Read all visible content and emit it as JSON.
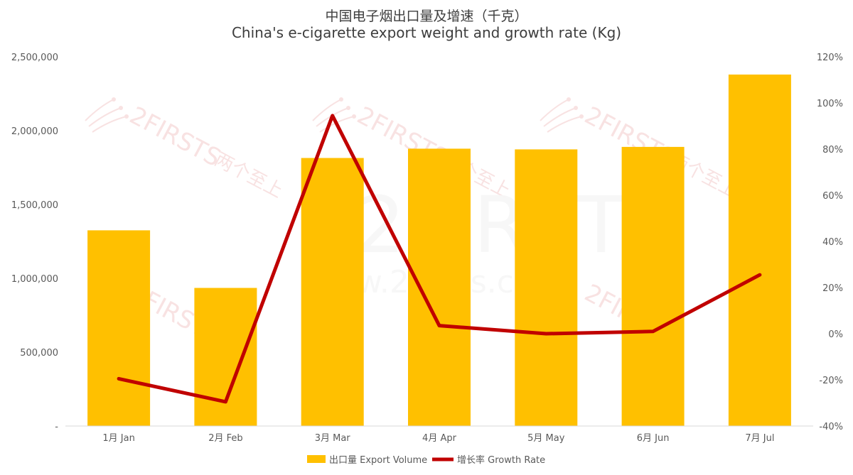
{
  "chart_data": {
    "type": "bar",
    "title": "中国电子烟出口量及增速（千克）",
    "subtitle": "China's e-cigarette export weight and growth rate (Kg)",
    "categories": [
      "1月 Jan",
      "2月 Feb",
      "3月 Mar",
      "4月 Apr",
      "5月 May",
      "6月 Jun",
      "7月 Jul"
    ],
    "series": [
      {
        "name": "出口量 Export Volume",
        "kind": "bar",
        "axis": "left",
        "color": "#FFC000",
        "values": [
          1325000,
          935000,
          1815000,
          1878000,
          1873000,
          1890000,
          2380000
        ]
      },
      {
        "name": "增长率 Growth Rate",
        "kind": "line",
        "axis": "right",
        "color": "#C00000",
        "values": [
          -0.195,
          -0.295,
          0.945,
          0.035,
          0.0,
          0.01,
          0.255
        ]
      }
    ],
    "y_left": {
      "ylim": [
        0,
        2500000
      ],
      "ticks": [
        0,
        500000,
        1000000,
        1500000,
        2000000,
        2500000
      ],
      "tick_labels": [
        "-",
        "500,000",
        "1,000,000",
        "1,500,000",
        "2,000,000",
        "2,500,000"
      ]
    },
    "y_right": {
      "ylim": [
        -0.4,
        1.2
      ],
      "ticks": [
        -0.4,
        -0.2,
        0,
        0.2,
        0.4,
        0.6,
        0.8,
        1.0,
        1.2
      ],
      "tick_labels": [
        "-40%",
        "-20%",
        "0%",
        "20%",
        "40%",
        "60%",
        "80%",
        "100%",
        "120%"
      ]
    },
    "grid": false,
    "legend_position": "bottom",
    "watermark_text": [
      "2FIRSTS",
      "两个至上",
      "www.2firsts.cn"
    ]
  }
}
